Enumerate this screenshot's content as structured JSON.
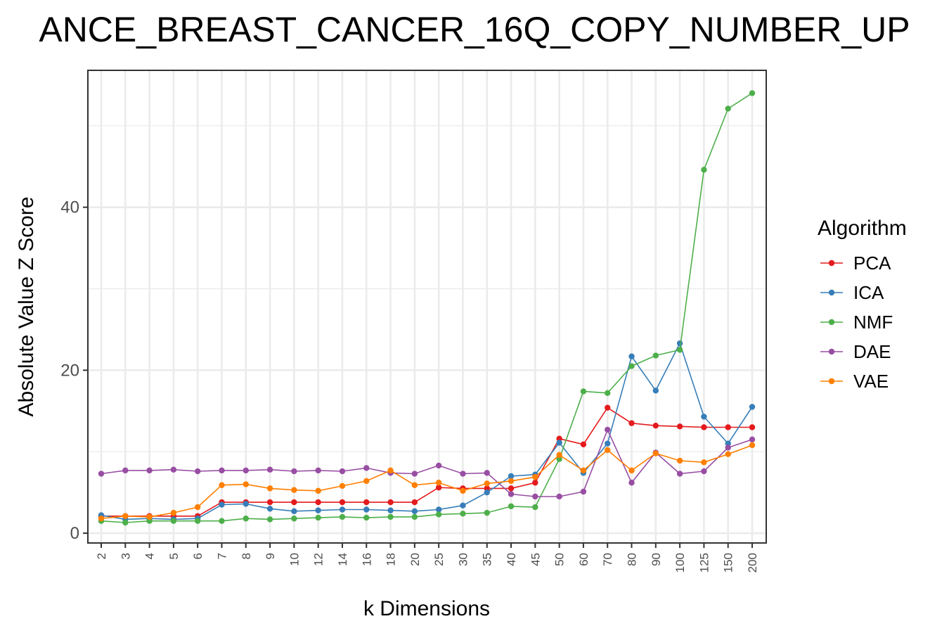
{
  "chart_data": {
    "type": "line",
    "title": "ANCE_BREAST_CANCER_16Q_COPY_NUMBER_UP",
    "xlabel": "k Dimensions",
    "ylabel": "Absolute Value Z Score",
    "x": [
      "2",
      "3",
      "4",
      "5",
      "6",
      "7",
      "8",
      "9",
      "10",
      "12",
      "14",
      "16",
      "18",
      "20",
      "25",
      "30",
      "35",
      "40",
      "45",
      "50",
      "60",
      "70",
      "80",
      "90",
      "100",
      "125",
      "150",
      "200"
    ],
    "ylim": [
      -1.2,
      56.8
    ],
    "yticks": [
      0,
      20,
      40
    ],
    "grid": true,
    "legend": {
      "title": "Algorithm",
      "position": "right"
    },
    "series": [
      {
        "name": "PCA",
        "color": "#e41a1c",
        "values": [
          2.1,
          2.1,
          2.1,
          2.1,
          2.1,
          3.8,
          3.8,
          3.8,
          3.8,
          3.8,
          3.8,
          3.8,
          3.8,
          3.8,
          5.6,
          5.5,
          5.5,
          5.5,
          6.2,
          11.6,
          10.9,
          15.4,
          13.5,
          13.2,
          13.1,
          13.0,
          13.0,
          13.0
        ]
      },
      {
        "name": "ICA",
        "color": "#377eb8",
        "values": [
          2.2,
          1.7,
          1.8,
          1.7,
          1.8,
          3.5,
          3.6,
          3.0,
          2.7,
          2.8,
          2.9,
          2.9,
          2.8,
          2.7,
          2.9,
          3.4,
          5.0,
          7.0,
          7.2,
          11.1,
          7.4,
          11.0,
          21.7,
          17.5,
          23.3,
          14.3,
          11.0,
          15.5
        ]
      },
      {
        "name": "NMF",
        "color": "#4daf4a",
        "values": [
          1.5,
          1.3,
          1.5,
          1.5,
          1.5,
          1.5,
          1.8,
          1.7,
          1.8,
          1.9,
          2.0,
          1.9,
          2.0,
          2.0,
          2.3,
          2.4,
          2.5,
          3.3,
          3.2,
          9.1,
          17.4,
          17.2,
          20.5,
          21.8,
          22.5,
          44.6,
          52.1,
          54.0
        ]
      },
      {
        "name": "DAE",
        "color": "#984ea3",
        "values": [
          7.3,
          7.7,
          7.7,
          7.8,
          7.6,
          7.7,
          7.7,
          7.8,
          7.6,
          7.7,
          7.6,
          8.0,
          7.4,
          7.3,
          8.3,
          7.3,
          7.4,
          4.8,
          4.5,
          4.5,
          5.1,
          12.7,
          6.2,
          9.9,
          7.3,
          7.6,
          10.5,
          11.5
        ]
      },
      {
        "name": "VAE",
        "color": "#ff7f00",
        "values": [
          1.8,
          2.1,
          2.0,
          2.5,
          3.2,
          5.9,
          6.0,
          5.5,
          5.3,
          5.2,
          5.8,
          6.4,
          7.7,
          5.9,
          6.2,
          5.2,
          6.1,
          6.4,
          6.9,
          9.6,
          7.7,
          10.2,
          7.7,
          9.8,
          8.9,
          8.7,
          9.7,
          10.8
        ]
      }
    ]
  }
}
